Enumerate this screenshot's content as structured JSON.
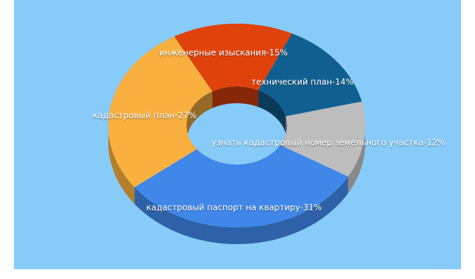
{
  "chart_data": {
    "type": "donut",
    "categories": [
      "кадастровый паспорт на квартиру-31%",
      "кадастровый план-27%",
      "инженерные изыскания-15%",
      "технический план-14%",
      "узнать кадастровый номер земельного участка-12%"
    ],
    "values": [
      31,
      27,
      15,
      14,
      12
    ],
    "colors": [
      "#3f88e9",
      "#f9b03f",
      "#e0420c",
      "#0f6091",
      "#bdbdbd"
    ]
  }
}
